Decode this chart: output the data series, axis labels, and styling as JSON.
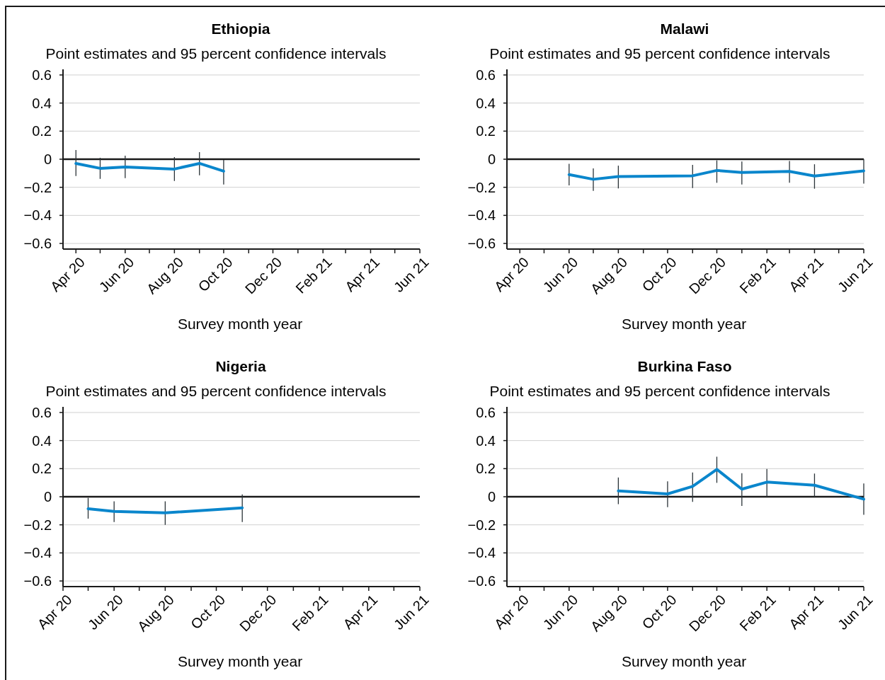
{
  "chart_data": [
    {
      "type": "line",
      "title": "Ethiopia",
      "subtitle": "Point estimates and 95 percent confidence intervals",
      "xlabel": "Survey month year",
      "x": [
        "2020-04",
        "2020-05",
        "2020-06",
        "2020-08",
        "2020-09",
        "2020-10"
      ],
      "series": [
        {
          "color": "#0a86cc",
          "values": [
            -0.03,
            -0.065,
            -0.055,
            -0.07,
            -0.03,
            -0.085
          ],
          "errors": [
            [
              -0.12,
              0.065
            ],
            [
              -0.14,
              0.01
            ],
            [
              -0.135,
              0.025
            ],
            [
              -0.155,
              0.015
            ],
            [
              -0.115,
              0.05
            ],
            [
              -0.18,
              -0.005
            ]
          ]
        }
      ],
      "xlim": [
        "2020-03-16",
        "2021-06"
      ],
      "xticks": [
        {
          "value": "2020-04",
          "label": "Apr 20"
        },
        {
          "value": "2020-05",
          "label": null
        },
        {
          "value": "2020-06",
          "label": "Jun 20"
        },
        {
          "value": "2020-07",
          "label": null
        },
        {
          "value": "2020-08",
          "label": "Aug 20"
        },
        {
          "value": "2020-09",
          "label": null
        },
        {
          "value": "2020-10",
          "label": "Oct 20"
        },
        {
          "value": "2020-11",
          "label": null
        },
        {
          "value": "2020-12",
          "label": "Dec 20"
        },
        {
          "value": "2021-01",
          "label": null
        },
        {
          "value": "2021-02",
          "label": "Feb 21"
        },
        {
          "value": "2021-03",
          "label": null
        },
        {
          "value": "2021-04",
          "label": "Apr 21"
        },
        {
          "value": "2021-05",
          "label": null
        },
        {
          "value": "2021-06",
          "label": "Jun 21"
        }
      ],
      "ylim": [
        -0.64,
        0.64
      ],
      "yticks": [
        0.6,
        0.4,
        0.2,
        0,
        {
          "value": -0.2,
          "label": "−0.2"
        },
        {
          "value": -0.4,
          "label": "−0.4"
        },
        {
          "value": -0.6,
          "label": "−0.6"
        }
      ],
      "grid": "y",
      "ref_lines": [
        {
          "axis": "y",
          "value": 0,
          "color": "#1a1a1a"
        }
      ]
    },
    {
      "type": "line",
      "title": "Malawi",
      "subtitle": "Point estimates and 95 percent confidence intervals",
      "xlabel": "Survey month year",
      "x": [
        "2020-06",
        "2020-07",
        "2020-08",
        "2020-11",
        "2020-12",
        "2021-01",
        "2021-03",
        "2021-04",
        "2021-06"
      ],
      "series": [
        {
          "color": "#0a86cc",
          "values": [
            -0.11,
            -0.143,
            -0.123,
            -0.118,
            -0.08,
            -0.095,
            -0.087,
            -0.12,
            -0.083
          ],
          "errors": [
            [
              -0.187,
              -0.033
            ],
            [
              -0.226,
              -0.066
            ],
            [
              -0.208,
              -0.046
            ],
            [
              -0.205,
              -0.04
            ],
            [
              -0.168,
              -0.008
            ],
            [
              -0.18,
              -0.016
            ],
            [
              -0.168,
              -0.013
            ],
            [
              -0.21,
              -0.036
            ],
            [
              -0.174,
              0
            ]
          ]
        }
      ],
      "xlim": [
        "2020-03-16",
        "2021-06"
      ],
      "xticks": [
        {
          "value": "2020-04",
          "label": "Apr 20"
        },
        {
          "value": "2020-05",
          "label": null
        },
        {
          "value": "2020-06",
          "label": "Jun 20"
        },
        {
          "value": "2020-07",
          "label": null
        },
        {
          "value": "2020-08",
          "label": "Aug 20"
        },
        {
          "value": "2020-09",
          "label": null
        },
        {
          "value": "2020-10",
          "label": "Oct 20"
        },
        {
          "value": "2020-11",
          "label": null
        },
        {
          "value": "2020-12",
          "label": "Dec 20"
        },
        {
          "value": "2021-01",
          "label": null
        },
        {
          "value": "2021-02",
          "label": "Feb 21"
        },
        {
          "value": "2021-03",
          "label": null
        },
        {
          "value": "2021-04",
          "label": "Apr 21"
        },
        {
          "value": "2021-05",
          "label": null
        },
        {
          "value": "2021-06",
          "label": "Jun 21"
        }
      ],
      "ylim": [
        -0.64,
        0.64
      ],
      "yticks": [
        0.6,
        0.4,
        0.2,
        0,
        {
          "value": -0.2,
          "label": "−0.2"
        },
        {
          "value": -0.4,
          "label": "−0.4"
        },
        {
          "value": -0.6,
          "label": "−0.6"
        }
      ],
      "grid": "y",
      "ref_lines": [
        {
          "axis": "y",
          "value": 0,
          "color": "#1a1a1a"
        }
      ]
    },
    {
      "type": "line",
      "title": "Nigeria",
      "subtitle": "Point estimates and 95 percent confidence intervals",
      "xlabel": "Survey month year",
      "x": [
        "2020-05",
        "2020-06",
        "2020-08",
        "2020-11"
      ],
      "series": [
        {
          "color": "#0a86cc",
          "values": [
            -0.086,
            -0.104,
            -0.115,
            -0.079
          ],
          "errors": [
            [
              -0.156,
              -0.008
            ],
            [
              -0.18,
              -0.033
            ],
            [
              -0.2,
              -0.033
            ],
            [
              -0.18,
              0.016
            ]
          ]
        }
      ],
      "xlim": [
        "2020-04",
        "2021-06"
      ],
      "xticks": [
        {
          "value": "2020-04",
          "label": "Apr 20"
        },
        {
          "value": "2020-05",
          "label": null
        },
        {
          "value": "2020-06",
          "label": "Jun 20"
        },
        {
          "value": "2020-07",
          "label": null
        },
        {
          "value": "2020-08",
          "label": "Aug 20"
        },
        {
          "value": "2020-09",
          "label": null
        },
        {
          "value": "2020-10",
          "label": "Oct 20"
        },
        {
          "value": "2020-11",
          "label": null
        },
        {
          "value": "2020-12",
          "label": "Dec 20"
        },
        {
          "value": "2021-01",
          "label": null
        },
        {
          "value": "2021-02",
          "label": "Feb 21"
        },
        {
          "value": "2021-03",
          "label": null
        },
        {
          "value": "2021-04",
          "label": "Apr 21"
        },
        {
          "value": "2021-05",
          "label": null
        },
        {
          "value": "2021-06",
          "label": "Jun 21"
        }
      ],
      "ylim": [
        -0.64,
        0.64
      ],
      "yticks": [
        0.6,
        0.4,
        0.2,
        0,
        {
          "value": -0.2,
          "label": "−0.2"
        },
        {
          "value": -0.4,
          "label": "−0.4"
        },
        {
          "value": -0.6,
          "label": "−0.6"
        }
      ],
      "grid": "y",
      "ref_lines": [
        {
          "axis": "y",
          "value": 0,
          "color": "#1a1a1a"
        }
      ]
    },
    {
      "type": "line",
      "title": "Burkina Faso",
      "subtitle": "Point estimates and 95 percent confidence intervals",
      "xlabel": "Survey month year",
      "x": [
        "2020-08",
        "2020-10",
        "2020-11",
        "2020-12",
        "2021-01",
        "2021-02",
        "2021-04",
        "2021-06"
      ],
      "series": [
        {
          "color": "#0a86cc",
          "values": [
            0.041,
            0.02,
            0.074,
            0.195,
            0.054,
            0.104,
            0.082,
            -0.017
          ],
          "errors": [
            [
              -0.053,
              0.137
            ],
            [
              -0.074,
              0.11
            ],
            [
              -0.037,
              0.173
            ],
            [
              0.099,
              0.285
            ],
            [
              -0.066,
              0.168
            ],
            [
              0,
              0.198
            ],
            [
              0,
              0.165
            ],
            [
              -0.129,
              0.094
            ]
          ]
        }
      ],
      "xlim": [
        "2020-03-16",
        "2021-06"
      ],
      "xticks": [
        {
          "value": "2020-04",
          "label": "Apr 20"
        },
        {
          "value": "2020-05",
          "label": null
        },
        {
          "value": "2020-06",
          "label": "Jun 20"
        },
        {
          "value": "2020-07",
          "label": null
        },
        {
          "value": "2020-08",
          "label": "Aug 20"
        },
        {
          "value": "2020-09",
          "label": null
        },
        {
          "value": "2020-10",
          "label": "Oct 20"
        },
        {
          "value": "2020-11",
          "label": null
        },
        {
          "value": "2020-12",
          "label": "Dec 20"
        },
        {
          "value": "2021-01",
          "label": null
        },
        {
          "value": "2021-02",
          "label": "Feb 21"
        },
        {
          "value": "2021-03",
          "label": null
        },
        {
          "value": "2021-04",
          "label": "Apr 21"
        },
        {
          "value": "2021-05",
          "label": null
        },
        {
          "value": "2021-06",
          "label": "Jun 21"
        }
      ],
      "ylim": [
        -0.64,
        0.64
      ],
      "yticks": [
        0.6,
        0.4,
        0.2,
        0,
        {
          "value": -0.2,
          "label": "−0.2"
        },
        {
          "value": -0.4,
          "label": "−0.4"
        },
        {
          "value": -0.6,
          "label": "−0.6"
        }
      ],
      "grid": "y",
      "ref_lines": [
        {
          "axis": "y",
          "value": 0,
          "color": "#1a1a1a"
        }
      ]
    }
  ]
}
